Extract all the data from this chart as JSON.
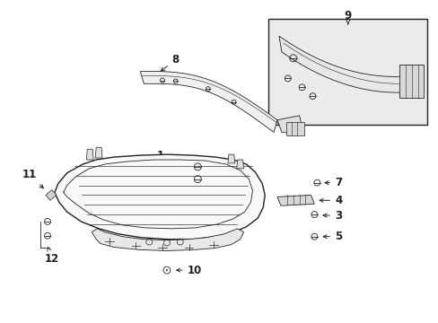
{
  "bg_color": "#ffffff",
  "fig_width": 4.89,
  "fig_height": 3.6,
  "dpi": 100,
  "line_color": "#222222",
  "label_fontsize": 8.5,
  "parts": {
    "bumper_color": "#f8f8f8",
    "reinf_color": "#f0f0f0",
    "box9_color": "#ebebeb"
  }
}
